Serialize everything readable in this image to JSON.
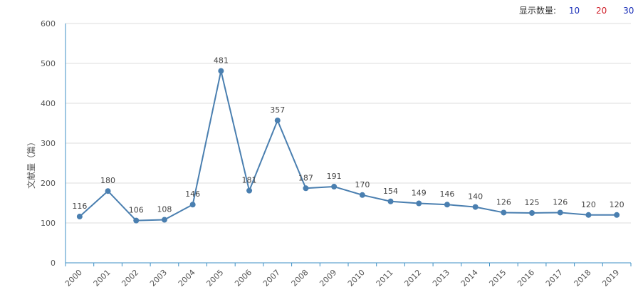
{
  "display_count": {
    "label": "显示数量:",
    "options": [
      {
        "label": "10",
        "color": "#1a2fb8"
      },
      {
        "label": "20",
        "color": "#d0202a"
      },
      {
        "label": "30",
        "color": "#1a2fb8"
      }
    ]
  },
  "chart_data": {
    "type": "line",
    "title": "",
    "xlabel": "",
    "ylabel": "文献量（篇）",
    "ylim": [
      0,
      600
    ],
    "yticks": [
      0,
      100,
      200,
      300,
      400,
      500,
      600
    ],
    "grid": true,
    "line_color": "#4a7fb0",
    "categories": [
      "2000",
      "2001",
      "2002",
      "2003",
      "2004",
      "2005",
      "2006",
      "2007",
      "2008",
      "2009",
      "2010",
      "2011",
      "2012",
      "2013",
      "2014",
      "2015",
      "2016",
      "2017",
      "2018",
      "2019"
    ],
    "series": [
      {
        "values": [
          116,
          180,
          106,
          108,
          146,
          481,
          181,
          357,
          187,
          191,
          170,
          154,
          149,
          146,
          140,
          126,
          125,
          126,
          120,
          120
        ]
      }
    ]
  }
}
